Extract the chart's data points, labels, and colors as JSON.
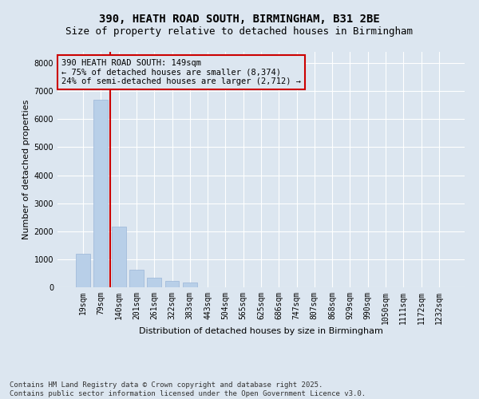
{
  "title_line1": "390, HEATH ROAD SOUTH, BIRMINGHAM, B31 2BE",
  "title_line2": "Size of property relative to detached houses in Birmingham",
  "xlabel": "Distribution of detached houses by size in Birmingham",
  "ylabel": "Number of detached properties",
  "categories": [
    "19sqm",
    "79sqm",
    "140sqm",
    "201sqm",
    "261sqm",
    "322sqm",
    "383sqm",
    "443sqm",
    "504sqm",
    "565sqm",
    "625sqm",
    "686sqm",
    "747sqm",
    "807sqm",
    "868sqm",
    "929sqm",
    "990sqm",
    "1050sqm",
    "1111sqm",
    "1172sqm",
    "1232sqm"
  ],
  "values": [
    1200,
    6700,
    2150,
    620,
    330,
    220,
    160,
    0,
    0,
    0,
    0,
    0,
    0,
    0,
    0,
    0,
    0,
    0,
    0,
    0,
    0
  ],
  "bar_color": "#b8cfe8",
  "bar_edge_color": "#9ab5d8",
  "vline_x": 1.5,
  "vline_color": "#cc0000",
  "annotation_box_text": "390 HEATH ROAD SOUTH: 149sqm\n← 75% of detached houses are smaller (8,374)\n24% of semi-detached houses are larger (2,712) →",
  "annotation_box_color": "#cc0000",
  "background_color": "#dce6f0",
  "plot_bg_color": "#dce6f0",
  "ylim": [
    0,
    8400
  ],
  "yticks": [
    0,
    1000,
    2000,
    3000,
    4000,
    5000,
    6000,
    7000,
    8000
  ],
  "footer_line1": "Contains HM Land Registry data © Crown copyright and database right 2025.",
  "footer_line2": "Contains public sector information licensed under the Open Government Licence v3.0.",
  "title_fontsize": 10,
  "subtitle_fontsize": 9,
  "axis_label_fontsize": 8,
  "tick_fontsize": 7,
  "annotation_fontsize": 7.5,
  "footer_fontsize": 6.5
}
